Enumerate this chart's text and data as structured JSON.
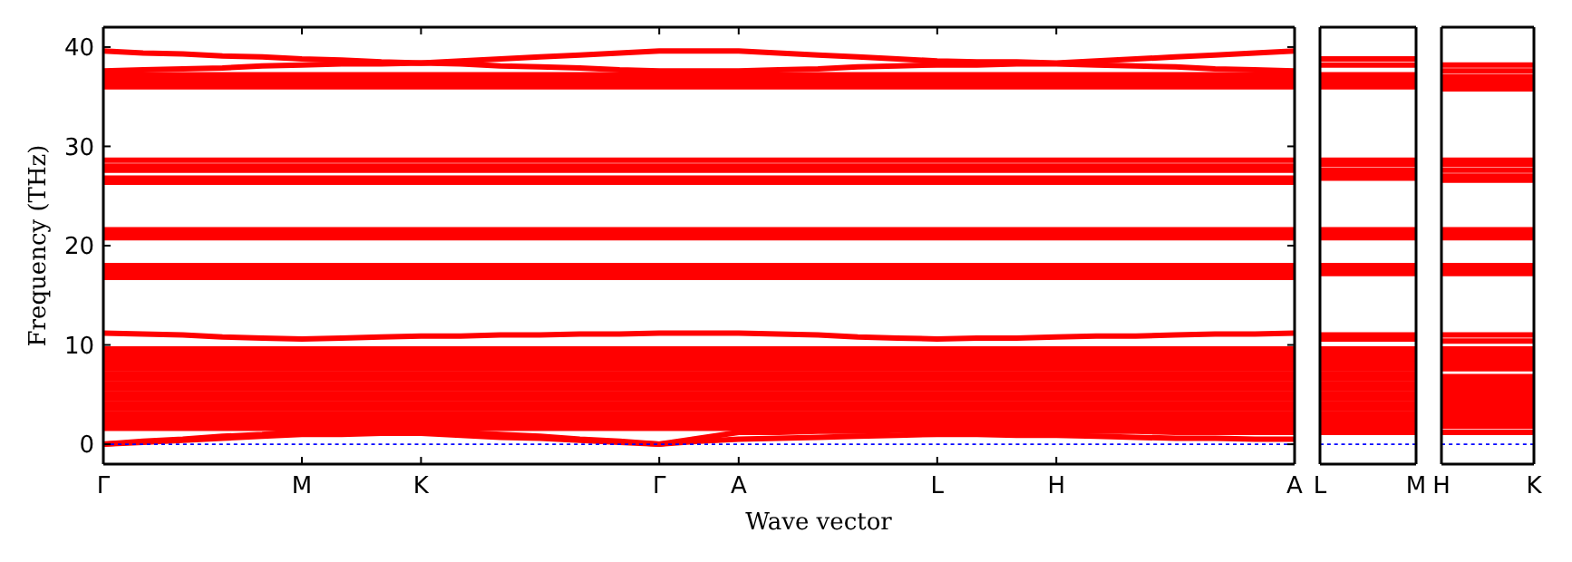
{
  "chart_data": [
    {
      "type": "line",
      "ylabel": "Frequency (THz)",
      "xlabel": "Wave vector",
      "categories": [
        "Γ",
        null,
        null,
        null,
        null,
        "M",
        null,
        null,
        "K",
        null,
        null,
        null,
        null,
        null,
        "Γ",
        null,
        "A",
        null,
        null,
        null,
        null,
        "L",
        null,
        null,
        "H",
        null,
        null,
        null,
        null,
        null,
        "A"
      ],
      "ylim": [
        -2,
        42
      ],
      "yticks": [
        0,
        10,
        20,
        30,
        40
      ],
      "series": [
        {
          "color": "#ff0000",
          "values": [
            39.6,
            39.4,
            39.3,
            39.1,
            39.0,
            38.8,
            38.7,
            38.5,
            38.4,
            38.6,
            38.8,
            39.0,
            39.2,
            39.4,
            39.6,
            39.6,
            39.6,
            39.4,
            39.2,
            39.0,
            38.8,
            38.6,
            38.5,
            38.5,
            38.4,
            38.6,
            38.8,
            39.0,
            39.2,
            39.4,
            39.6
          ]
        },
        {
          "color": "#ff0000",
          "values": [
            37.6,
            37.7,
            37.8,
            37.9,
            38.1,
            38.2,
            38.3,
            38.3,
            38.4,
            38.3,
            38.1,
            38.0,
            37.9,
            37.7,
            37.6,
            37.6,
            37.6,
            37.7,
            37.8,
            38.0,
            38.1,
            38.2,
            38.2,
            38.3,
            38.3,
            38.2,
            38.1,
            38.0,
            37.8,
            37.7,
            37.6
          ]
        },
        {
          "color": "#ff0000",
          "values": [
            37.2,
            37.2,
            37.2,
            37.2,
            37.2,
            37.2,
            37.2,
            37.2,
            37.2,
            37.2,
            37.2,
            37.2,
            37.2,
            37.2,
            37.2,
            37.2,
            37.2,
            37.2,
            37.2,
            37.2,
            37.2,
            37.2,
            37.2,
            37.2,
            37.2,
            37.2,
            37.2,
            37.2,
            37.2,
            37.2,
            37.2
          ]
        },
        {
          "color": "#ff0000",
          "values": [
            36.8,
            36.8,
            36.8,
            36.8,
            36.8,
            36.8,
            36.8,
            36.8,
            36.8,
            36.8,
            36.8,
            36.8,
            36.8,
            36.8,
            36.8,
            36.8,
            36.8,
            36.8,
            36.8,
            36.8,
            36.8,
            36.8,
            36.8,
            36.8,
            36.8,
            36.8,
            36.8,
            36.8,
            36.8,
            36.8,
            36.8
          ]
        },
        {
          "color": "#ff0000",
          "values": [
            36.4,
            36.4,
            36.4,
            36.4,
            36.4,
            36.4,
            36.4,
            36.4,
            36.4,
            36.4,
            36.4,
            36.4,
            36.4,
            36.4,
            36.4,
            36.4,
            36.4,
            36.4,
            36.4,
            36.4,
            36.4,
            36.4,
            36.4,
            36.4,
            36.4,
            36.4,
            36.4,
            36.4,
            36.4,
            36.4,
            36.4
          ]
        },
        {
          "color": "#ff0000",
          "values": [
            36.0,
            36.0,
            36.0,
            36.0,
            36.0,
            36.0,
            36.0,
            36.0,
            36.0,
            36.0,
            36.0,
            36.0,
            36.0,
            36.0,
            36.0,
            36.0,
            36.0,
            36.0,
            36.0,
            36.0,
            36.0,
            36.0,
            36.0,
            36.0,
            36.0,
            36.0,
            36.0,
            36.0,
            36.0,
            36.0,
            36.0
          ]
        },
        {
          "color": "#ff0000",
          "values": [
            28.6,
            28.6,
            28.6,
            28.6,
            28.6,
            28.6,
            28.6,
            28.6,
            28.6,
            28.6,
            28.6,
            28.6,
            28.6,
            28.6,
            28.6,
            28.6,
            28.6,
            28.6,
            28.6,
            28.6,
            28.6,
            28.6,
            28.6,
            28.6,
            28.6,
            28.6,
            28.6,
            28.6,
            28.6,
            28.6,
            28.6
          ]
        },
        {
          "color": "#ff0000",
          "values": [
            28.0,
            28.0,
            28.0,
            28.0,
            28.0,
            28.0,
            28.0,
            28.0,
            28.0,
            28.0,
            28.0,
            28.0,
            28.0,
            28.0,
            28.0,
            28.0,
            28.0,
            28.0,
            28.0,
            28.0,
            28.0,
            28.0,
            28.0,
            28.0,
            28.0,
            28.0,
            28.0,
            28.0,
            28.0,
            28.0,
            28.0
          ]
        },
        {
          "color": "#ff0000",
          "values": [
            27.6,
            27.6,
            27.6,
            27.6,
            27.6,
            27.6,
            27.6,
            27.6,
            27.6,
            27.6,
            27.6,
            27.6,
            27.6,
            27.6,
            27.6,
            27.6,
            27.6,
            27.6,
            27.6,
            27.6,
            27.6,
            27.6,
            27.6,
            27.6,
            27.6,
            27.6,
            27.6,
            27.6,
            27.6,
            27.6,
            27.6
          ]
        },
        {
          "color": "#ff0000",
          "values": [
            26.8,
            26.8,
            26.8,
            26.8,
            26.8,
            26.8,
            26.8,
            26.8,
            26.8,
            26.8,
            26.8,
            26.8,
            26.8,
            26.8,
            26.8,
            26.8,
            26.8,
            26.8,
            26.8,
            26.8,
            26.8,
            26.8,
            26.8,
            26.8,
            26.8,
            26.8,
            26.8,
            26.8,
            26.8,
            26.8,
            26.8
          ]
        },
        {
          "color": "#ff0000",
          "values": [
            26.4,
            26.4,
            26.4,
            26.4,
            26.4,
            26.4,
            26.4,
            26.4,
            26.4,
            26.4,
            26.4,
            26.4,
            26.4,
            26.4,
            26.4,
            26.4,
            26.4,
            26.4,
            26.4,
            26.4,
            26.4,
            26.4,
            26.4,
            26.4,
            26.4,
            26.4,
            26.4,
            26.4,
            26.4,
            26.4,
            26.4
          ]
        },
        {
          "color": "#ff0000",
          "values": [
            21.6,
            21.6,
            21.6,
            21.6,
            21.6,
            21.6,
            21.6,
            21.6,
            21.6,
            21.6,
            21.6,
            21.6,
            21.6,
            21.6,
            21.6,
            21.6,
            21.6,
            21.6,
            21.6,
            21.6,
            21.6,
            21.6,
            21.6,
            21.6,
            21.6,
            21.6,
            21.6,
            21.6,
            21.6,
            21.6,
            21.6
          ]
        },
        {
          "color": "#ff0000",
          "values": [
            21.2,
            21.2,
            21.2,
            21.2,
            21.2,
            21.2,
            21.2,
            21.2,
            21.2,
            21.2,
            21.2,
            21.2,
            21.2,
            21.2,
            21.2,
            21.2,
            21.2,
            21.2,
            21.2,
            21.2,
            21.2,
            21.2,
            21.2,
            21.2,
            21.2,
            21.2,
            21.2,
            21.2,
            21.2,
            21.2,
            21.2
          ]
        },
        {
          "color": "#ff0000",
          "values": [
            20.8,
            20.8,
            20.8,
            20.8,
            20.8,
            20.8,
            20.8,
            20.8,
            20.8,
            20.8,
            20.8,
            20.8,
            20.8,
            20.8,
            20.8,
            20.8,
            20.8,
            20.8,
            20.8,
            20.8,
            20.8,
            20.8,
            20.8,
            20.8,
            20.8,
            20.8,
            20.8,
            20.8,
            20.8,
            20.8,
            20.8
          ]
        },
        {
          "color": "#ff0000",
          "values": [
            18.0,
            18.0,
            18.0,
            18.0,
            18.0,
            18.0,
            18.0,
            18.0,
            18.0,
            18.0,
            18.0,
            18.0,
            18.0,
            18.0,
            18.0,
            18.0,
            18.0,
            18.0,
            18.0,
            18.0,
            18.0,
            18.0,
            18.0,
            18.0,
            18.0,
            18.0,
            18.0,
            18.0,
            18.0,
            18.0,
            18.0
          ]
        },
        {
          "color": "#ff0000",
          "values": [
            17.6,
            17.6,
            17.6,
            17.6,
            17.6,
            17.6,
            17.6,
            17.6,
            17.6,
            17.6,
            17.6,
            17.6,
            17.6,
            17.6,
            17.6,
            17.6,
            17.6,
            17.6,
            17.6,
            17.6,
            17.6,
            17.6,
            17.6,
            17.6,
            17.6,
            17.6,
            17.6,
            17.6,
            17.6,
            17.6,
            17.6
          ]
        },
        {
          "color": "#ff0000",
          "values": [
            17.2,
            17.2,
            17.2,
            17.2,
            17.2,
            17.2,
            17.2,
            17.2,
            17.2,
            17.2,
            17.2,
            17.2,
            17.2,
            17.2,
            17.2,
            17.2,
            17.2,
            17.2,
            17.2,
            17.2,
            17.2,
            17.2,
            17.2,
            17.2,
            17.2,
            17.2,
            17.2,
            17.2,
            17.2,
            17.2,
            17.2
          ]
        },
        {
          "color": "#ff0000",
          "values": [
            16.8,
            16.8,
            16.8,
            16.8,
            16.8,
            16.8,
            16.8,
            16.8,
            16.8,
            16.8,
            16.8,
            16.8,
            16.8,
            16.8,
            16.8,
            16.8,
            16.8,
            16.8,
            16.8,
            16.8,
            16.8,
            16.8,
            16.8,
            16.8,
            16.8,
            16.8,
            16.8,
            16.8,
            16.8,
            16.8,
            16.8
          ]
        },
        {
          "color": "#ff0000",
          "values": [
            11.2,
            11.1,
            11.0,
            10.8,
            10.7,
            10.6,
            10.7,
            10.8,
            10.9,
            10.9,
            11.0,
            11.0,
            11.1,
            11.1,
            11.2,
            11.2,
            11.2,
            11.1,
            11.0,
            10.8,
            10.7,
            10.6,
            10.7,
            10.7,
            10.8,
            10.9,
            10.9,
            11.0,
            11.1,
            11.1,
            11.2
          ]
        },
        {
          "color": "#ff0000",
          "values": [
            9.6,
            9.6,
            9.6,
            9.6,
            9.6,
            9.6,
            9.6,
            9.6,
            9.6,
            9.6,
            9.6,
            9.6,
            9.6,
            9.6,
            9.6,
            9.6,
            9.6,
            9.6,
            9.6,
            9.6,
            9.6,
            9.6,
            9.6,
            9.6,
            9.6,
            9.6,
            9.6,
            9.6,
            9.6,
            9.6,
            9.6
          ]
        },
        {
          "color": "#ff0000",
          "values": [
            9.1,
            9.1,
            9.1,
            9.1,
            9.1,
            9.1,
            9.1,
            9.1,
            9.1,
            9.1,
            9.1,
            9.1,
            9.1,
            9.1,
            9.1,
            9.1,
            9.1,
            9.1,
            9.1,
            9.1,
            9.1,
            9.1,
            9.1,
            9.1,
            9.1,
            9.1,
            9.1,
            9.1,
            9.1,
            9.1,
            9.1
          ]
        },
        {
          "color": "#ff0000",
          "values": [
            8.6,
            8.6,
            8.6,
            8.6,
            8.6,
            8.6,
            8.6,
            8.6,
            8.6,
            8.6,
            8.6,
            8.6,
            8.6,
            8.6,
            8.6,
            8.6,
            8.6,
            8.6,
            8.6,
            8.6,
            8.6,
            8.6,
            8.6,
            8.6,
            8.6,
            8.6,
            8.6,
            8.6,
            8.6,
            8.6,
            8.6
          ]
        },
        {
          "color": "#ff0000",
          "values": [
            8.1,
            8.1,
            8.1,
            8.1,
            8.1,
            8.1,
            8.1,
            8.1,
            8.1,
            8.1,
            8.1,
            8.1,
            8.1,
            8.1,
            8.1,
            8.1,
            8.1,
            8.1,
            8.1,
            8.1,
            8.1,
            8.1,
            8.1,
            8.1,
            8.1,
            8.1,
            8.1,
            8.1,
            8.1,
            8.1,
            8.1
          ]
        },
        {
          "color": "#ff0000",
          "values": [
            7.6,
            7.6,
            7.6,
            7.6,
            7.6,
            7.6,
            7.6,
            7.6,
            7.6,
            7.6,
            7.6,
            7.6,
            7.6,
            7.6,
            7.6,
            7.6,
            7.6,
            7.6,
            7.6,
            7.6,
            7.6,
            7.6,
            7.6,
            7.6,
            7.6,
            7.6,
            7.6,
            7.6,
            7.6,
            7.6,
            7.6
          ]
        },
        {
          "color": "#ff0000",
          "values": [
            7.1,
            7.1,
            7.1,
            7.1,
            7.1,
            7.1,
            7.1,
            7.1,
            7.1,
            7.1,
            7.1,
            7.1,
            7.1,
            7.1,
            7.1,
            7.1,
            7.1,
            7.1,
            7.1,
            7.1,
            7.1,
            7.1,
            7.1,
            7.1,
            7.1,
            7.1,
            7.1,
            7.1,
            7.1,
            7.1,
            7.1
          ]
        },
        {
          "color": "#ff0000",
          "values": [
            6.6,
            6.6,
            6.6,
            6.6,
            6.6,
            6.6,
            6.6,
            6.6,
            6.6,
            6.6,
            6.6,
            6.6,
            6.6,
            6.6,
            6.6,
            6.6,
            6.6,
            6.6,
            6.6,
            6.6,
            6.6,
            6.6,
            6.6,
            6.6,
            6.6,
            6.6,
            6.6,
            6.6,
            6.6,
            6.6,
            6.6
          ]
        },
        {
          "color": "#ff0000",
          "values": [
            6.1,
            6.1,
            6.1,
            6.1,
            6.1,
            6.1,
            6.1,
            6.1,
            6.1,
            6.1,
            6.1,
            6.1,
            6.1,
            6.1,
            6.1,
            6.1,
            6.1,
            6.1,
            6.1,
            6.1,
            6.1,
            6.1,
            6.1,
            6.1,
            6.1,
            6.1,
            6.1,
            6.1,
            6.1,
            6.1,
            6.1
          ]
        },
        {
          "color": "#ff0000",
          "values": [
            5.6,
            5.6,
            5.6,
            5.6,
            5.6,
            5.6,
            5.6,
            5.6,
            5.6,
            5.6,
            5.6,
            5.6,
            5.6,
            5.6,
            5.6,
            5.6,
            5.6,
            5.6,
            5.6,
            5.6,
            5.6,
            5.6,
            5.6,
            5.6,
            5.6,
            5.6,
            5.6,
            5.6,
            5.6,
            5.6,
            5.6
          ]
        },
        {
          "color": "#ff0000",
          "values": [
            5.1,
            5.1,
            5.1,
            5.1,
            5.1,
            5.1,
            5.1,
            5.1,
            5.1,
            5.1,
            5.1,
            5.1,
            5.1,
            5.1,
            5.1,
            5.1,
            5.1,
            5.1,
            5.1,
            5.1,
            5.1,
            5.1,
            5.1,
            5.1,
            5.1,
            5.1,
            5.1,
            5.1,
            5.1,
            5.1,
            5.1
          ]
        },
        {
          "color": "#ff0000",
          "values": [
            4.6,
            4.6,
            4.6,
            4.6,
            4.6,
            4.6,
            4.6,
            4.6,
            4.6,
            4.6,
            4.6,
            4.6,
            4.6,
            4.6,
            4.6,
            4.6,
            4.6,
            4.6,
            4.6,
            4.6,
            4.6,
            4.6,
            4.6,
            4.6,
            4.6,
            4.6,
            4.6,
            4.6,
            4.6,
            4.6,
            4.6
          ]
        },
        {
          "color": "#ff0000",
          "values": [
            4.1,
            4.1,
            4.1,
            4.1,
            4.1,
            4.1,
            4.1,
            4.1,
            4.1,
            4.1,
            4.1,
            4.1,
            4.1,
            4.1,
            4.1,
            4.1,
            4.1,
            4.1,
            4.1,
            4.1,
            4.1,
            4.1,
            4.1,
            4.1,
            4.1,
            4.1,
            4.1,
            4.1,
            4.1,
            4.1,
            4.1
          ]
        },
        {
          "color": "#ff0000",
          "values": [
            3.6,
            3.6,
            3.6,
            3.6,
            3.6,
            3.6,
            3.6,
            3.6,
            3.6,
            3.6,
            3.6,
            3.6,
            3.6,
            3.6,
            3.6,
            3.6,
            3.6,
            3.6,
            3.6,
            3.6,
            3.6,
            3.6,
            3.6,
            3.6,
            3.6,
            3.6,
            3.6,
            3.6,
            3.6,
            3.6,
            3.6
          ]
        },
        {
          "color": "#ff0000",
          "values": [
            3.1,
            3.1,
            3.1,
            3.1,
            3.1,
            3.1,
            3.1,
            3.1,
            3.1,
            3.1,
            3.1,
            3.1,
            3.1,
            3.1,
            3.1,
            3.1,
            3.1,
            3.1,
            3.1,
            3.1,
            3.1,
            3.1,
            3.1,
            3.1,
            3.1,
            3.1,
            3.1,
            3.1,
            3.1,
            3.1,
            3.1
          ]
        },
        {
          "color": "#ff0000",
          "values": [
            2.6,
            2.6,
            2.6,
            2.6,
            2.6,
            2.6,
            2.6,
            2.6,
            2.6,
            2.6,
            2.6,
            2.6,
            2.6,
            2.6,
            2.6,
            2.6,
            2.6,
            2.6,
            2.6,
            2.6,
            2.6,
            2.6,
            2.6,
            2.6,
            2.6,
            2.6,
            2.6,
            2.6,
            2.6,
            2.6,
            2.6
          ]
        },
        {
          "color": "#ff0000",
          "values": [
            2.1,
            2.1,
            2.1,
            2.1,
            2.1,
            2.1,
            2.1,
            2.1,
            2.1,
            2.1,
            2.1,
            2.1,
            2.1,
            2.1,
            2.1,
            2.1,
            2.1,
            2.1,
            2.1,
            2.1,
            2.1,
            2.1,
            2.1,
            2.1,
            2.1,
            2.1,
            2.1,
            2.1,
            2.1,
            2.1,
            2.1
          ]
        },
        {
          "color": "#ff0000",
          "values": [
            1.6,
            1.6,
            1.6,
            1.6,
            1.6,
            1.6,
            1.6,
            1.6,
            1.6,
            1.6,
            1.6,
            1.6,
            1.6,
            1.6,
            1.6,
            1.6,
            1.6,
            1.6,
            1.6,
            1.6,
            1.6,
            1.6,
            1.6,
            1.6,
            1.6,
            1.6,
            1.6,
            1.6,
            1.6,
            1.6,
            1.6
          ]
        },
        {
          "color": "#ff0000",
          "values": [
            0,
            0.3,
            0.5,
            0.8,
            1.0,
            1.3,
            1.3,
            1.3,
            1.3,
            1.2,
            1.0,
            0.8,
            0.5,
            0.3,
            0,
            0.6,
            1.2,
            1.2,
            1.3,
            1.3,
            1.4,
            1.4,
            1.4,
            1.3,
            1.3,
            1.3,
            1.3,
            1.2,
            1.2,
            1.2,
            1.2
          ]
        },
        {
          "color": "#ff0000",
          "values": [
            0,
            0.2,
            0.4,
            0.6,
            0.8,
            1.0,
            1.0,
            1.1,
            1.1,
            0.9,
            0.7,
            0.6,
            0.4,
            0.2,
            0,
            0.3,
            0.5,
            0.6,
            0.7,
            0.8,
            0.9,
            1.0,
            1.0,
            0.9,
            0.9,
            0.8,
            0.7,
            0.6,
            0.6,
            0.5,
            0.5
          ]
        },
        {
          "color": "#0000ff",
          "line_style": "dotted",
          "values": [
            0,
            0,
            0,
            0,
            0,
            0,
            0,
            0,
            0,
            0,
            0,
            0,
            0,
            0,
            0,
            0,
            0,
            0,
            0,
            0,
            0,
            0,
            0,
            0,
            0,
            0,
            0,
            0,
            0,
            0,
            0
          ]
        }
      ]
    },
    {
      "type": "line",
      "categories": [
        "L",
        "M"
      ],
      "ylim": [
        -2,
        42
      ],
      "yticks": [
        0,
        10,
        20,
        30,
        40
      ],
      "tick_labels": "x",
      "series": [
        {
          "color": "#ff0000",
          "values": [
            38.8,
            38.8
          ]
        },
        {
          "color": "#ff0000",
          "values": [
            38.2,
            38.2
          ]
        },
        {
          "color": "#ff0000",
          "values": [
            37.2,
            37.2
          ]
        },
        {
          "color": "#ff0000",
          "values": [
            36.8,
            36.8
          ]
        },
        {
          "color": "#ff0000",
          "values": [
            36.4,
            36.4
          ]
        },
        {
          "color": "#ff0000",
          "values": [
            36.0,
            36.0
          ]
        },
        {
          "color": "#ff0000",
          "values": [
            28.6,
            28.6
          ]
        },
        {
          "color": "#ff0000",
          "values": [
            28.2,
            28.2
          ]
        },
        {
          "color": "#ff0000",
          "values": [
            27.6,
            27.6
          ]
        },
        {
          "color": "#ff0000",
          "values": [
            27.2,
            27.2
          ]
        },
        {
          "color": "#ff0000",
          "values": [
            26.8,
            26.8
          ]
        },
        {
          "color": "#ff0000",
          "values": [
            21.6,
            21.6
          ]
        },
        {
          "color": "#ff0000",
          "values": [
            21.2,
            21.2
          ]
        },
        {
          "color": "#ff0000",
          "values": [
            20.8,
            20.8
          ]
        },
        {
          "color": "#ff0000",
          "values": [
            18.0,
            18.0
          ]
        },
        {
          "color": "#ff0000",
          "values": [
            17.6,
            17.6
          ]
        },
        {
          "color": "#ff0000",
          "values": [
            17.2,
            17.2
          ]
        },
        {
          "color": "#ff0000",
          "values": [
            11.0,
            11.0
          ]
        },
        {
          "color": "#ff0000",
          "values": [
            10.6,
            10.6
          ]
        },
        {
          "color": "#ff0000",
          "values": [
            9.6,
            9.6
          ]
        },
        {
          "color": "#ff0000",
          "values": [
            9.1,
            9.1
          ]
        },
        {
          "color": "#ff0000",
          "values": [
            8.6,
            8.6
          ]
        },
        {
          "color": "#ff0000",
          "values": [
            8.1,
            8.1
          ]
        },
        {
          "color": "#ff0000",
          "values": [
            7.6,
            7.6
          ]
        },
        {
          "color": "#ff0000",
          "values": [
            7.1,
            7.1
          ]
        },
        {
          "color": "#ff0000",
          "values": [
            6.6,
            6.6
          ]
        },
        {
          "color": "#ff0000",
          "values": [
            6.1,
            6.1
          ]
        },
        {
          "color": "#ff0000",
          "values": [
            5.6,
            5.6
          ]
        },
        {
          "color": "#ff0000",
          "values": [
            5.1,
            5.1
          ]
        },
        {
          "color": "#ff0000",
          "values": [
            4.6,
            4.6
          ]
        },
        {
          "color": "#ff0000",
          "values": [
            4.1,
            4.1
          ]
        },
        {
          "color": "#ff0000",
          "values": [
            3.6,
            3.6
          ]
        },
        {
          "color": "#ff0000",
          "values": [
            3.1,
            3.1
          ]
        },
        {
          "color": "#ff0000",
          "values": [
            2.6,
            2.6
          ]
        },
        {
          "color": "#ff0000",
          "values": [
            2.1,
            2.1
          ]
        },
        {
          "color": "#ff0000",
          "values": [
            1.6,
            1.6
          ]
        },
        {
          "color": "#ff0000",
          "values": [
            1.2,
            1.2
          ]
        },
        {
          "color": "#0000ff",
          "line_style": "dotted",
          "values": [
            0,
            0
          ]
        }
      ]
    },
    {
      "type": "line",
      "categories": [
        "H",
        "K"
      ],
      "ylim": [
        -2,
        42
      ],
      "yticks": [
        0,
        10,
        20,
        30,
        40
      ],
      "tick_labels": "x",
      "series": [
        {
          "color": "#ff0000",
          "values": [
            38.2,
            38.2
          ]
        },
        {
          "color": "#ff0000",
          "values": [
            37.6,
            37.6
          ]
        },
        {
          "color": "#ff0000",
          "values": [
            37.0,
            37.0
          ]
        },
        {
          "color": "#ff0000",
          "values": [
            36.6,
            36.6
          ]
        },
        {
          "color": "#ff0000",
          "values": [
            36.2,
            36.2
          ]
        },
        {
          "color": "#ff0000",
          "values": [
            35.8,
            35.8
          ]
        },
        {
          "color": "#ff0000",
          "values": [
            28.6,
            28.6
          ]
        },
        {
          "color": "#ff0000",
          "values": [
            28.2,
            28.2
          ]
        },
        {
          "color": "#ff0000",
          "values": [
            27.6,
            27.6
          ]
        },
        {
          "color": "#ff0000",
          "values": [
            27.0,
            27.0
          ]
        },
        {
          "color": "#ff0000",
          "values": [
            26.6,
            26.6
          ]
        },
        {
          "color": "#ff0000",
          "values": [
            21.6,
            21.6
          ]
        },
        {
          "color": "#ff0000",
          "values": [
            21.2,
            21.2
          ]
        },
        {
          "color": "#ff0000",
          "values": [
            20.8,
            20.8
          ]
        },
        {
          "color": "#ff0000",
          "values": [
            18.0,
            18.0
          ]
        },
        {
          "color": "#ff0000",
          "values": [
            17.6,
            17.6
          ]
        },
        {
          "color": "#ff0000",
          "values": [
            17.2,
            17.2
          ]
        },
        {
          "color": "#ff0000",
          "values": [
            11.0,
            11.0
          ]
        },
        {
          "color": "#ff0000",
          "values": [
            10.4,
            10.4
          ]
        },
        {
          "color": "#ff0000",
          "values": [
            9.6,
            9.6
          ]
        },
        {
          "color": "#ff0000",
          "values": [
            9.1,
            9.1
          ]
        },
        {
          "color": "#ff0000",
          "values": [
            8.6,
            8.6
          ]
        },
        {
          "color": "#ff0000",
          "values": [
            8.1,
            8.1
          ]
        },
        {
          "color": "#ff0000",
          "values": [
            7.6,
            7.6
          ]
        },
        {
          "color": "#ff0000",
          "values": [
            6.8,
            6.8
          ]
        },
        {
          "color": "#ff0000",
          "values": [
            6.3,
            6.3
          ]
        },
        {
          "color": "#ff0000",
          "values": [
            5.8,
            5.8
          ]
        },
        {
          "color": "#ff0000",
          "values": [
            5.3,
            5.3
          ]
        },
        {
          "color": "#ff0000",
          "values": [
            4.8,
            4.8
          ]
        },
        {
          "color": "#ff0000",
          "values": [
            4.3,
            4.3
          ]
        },
        {
          "color": "#ff0000",
          "values": [
            3.8,
            3.8
          ]
        },
        {
          "color": "#ff0000",
          "values": [
            3.3,
            3.3
          ]
        },
        {
          "color": "#ff0000",
          "values": [
            2.8,
            2.8
          ]
        },
        {
          "color": "#ff0000",
          "values": [
            2.3,
            2.3
          ]
        },
        {
          "color": "#ff0000",
          "values": [
            1.8,
            1.8
          ]
        },
        {
          "color": "#ff0000",
          "values": [
            1.2,
            1.2
          ]
        },
        {
          "color": "#0000ff",
          "line_style": "dotted",
          "values": [
            0,
            0
          ]
        }
      ]
    }
  ]
}
